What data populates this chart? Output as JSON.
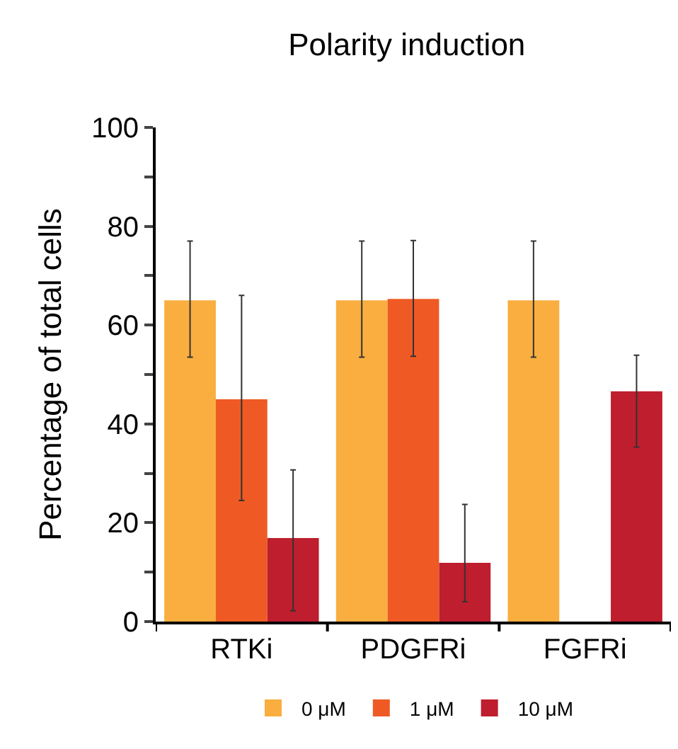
{
  "chart_data": {
    "type": "bar",
    "title": "Polarity induction",
    "ylabel": "Percentage of total cells",
    "categories": [
      "RTKi",
      "PDGFRi",
      "FGFRi"
    ],
    "series": [
      {
        "name": "0 μM",
        "color": "#f9ae3f",
        "values": [
          65,
          65,
          65
        ],
        "errors": [
          [
            53.5,
            77
          ],
          [
            53.5,
            77
          ],
          [
            53.5,
            77
          ]
        ]
      },
      {
        "name": "1 μM",
        "color": "#ef5a24",
        "values": [
          45,
          65.3,
          null
        ],
        "errors": [
          [
            24.5,
            66
          ],
          [
            53.7,
            77.1
          ],
          null
        ]
      },
      {
        "name": "10 μM",
        "color": "#be1e2d",
        "values": [
          16.9,
          11.9,
          46.6
        ],
        "errors": [
          [
            2.2,
            30.7
          ],
          [
            4,
            23.7
          ],
          [
            35.3,
            53.9
          ]
        ]
      }
    ],
    "ylim": [
      0,
      100
    ],
    "yticks": [
      0,
      {
        "value": 10,
        "label": null
      },
      20,
      {
        "value": 30,
        "label": null
      },
      40,
      {
        "value": 50,
        "label": null
      },
      60,
      {
        "value": 70,
        "label": null
      },
      80,
      {
        "value": 90,
        "label": null
      },
      100
    ],
    "legend": "bottom"
  }
}
